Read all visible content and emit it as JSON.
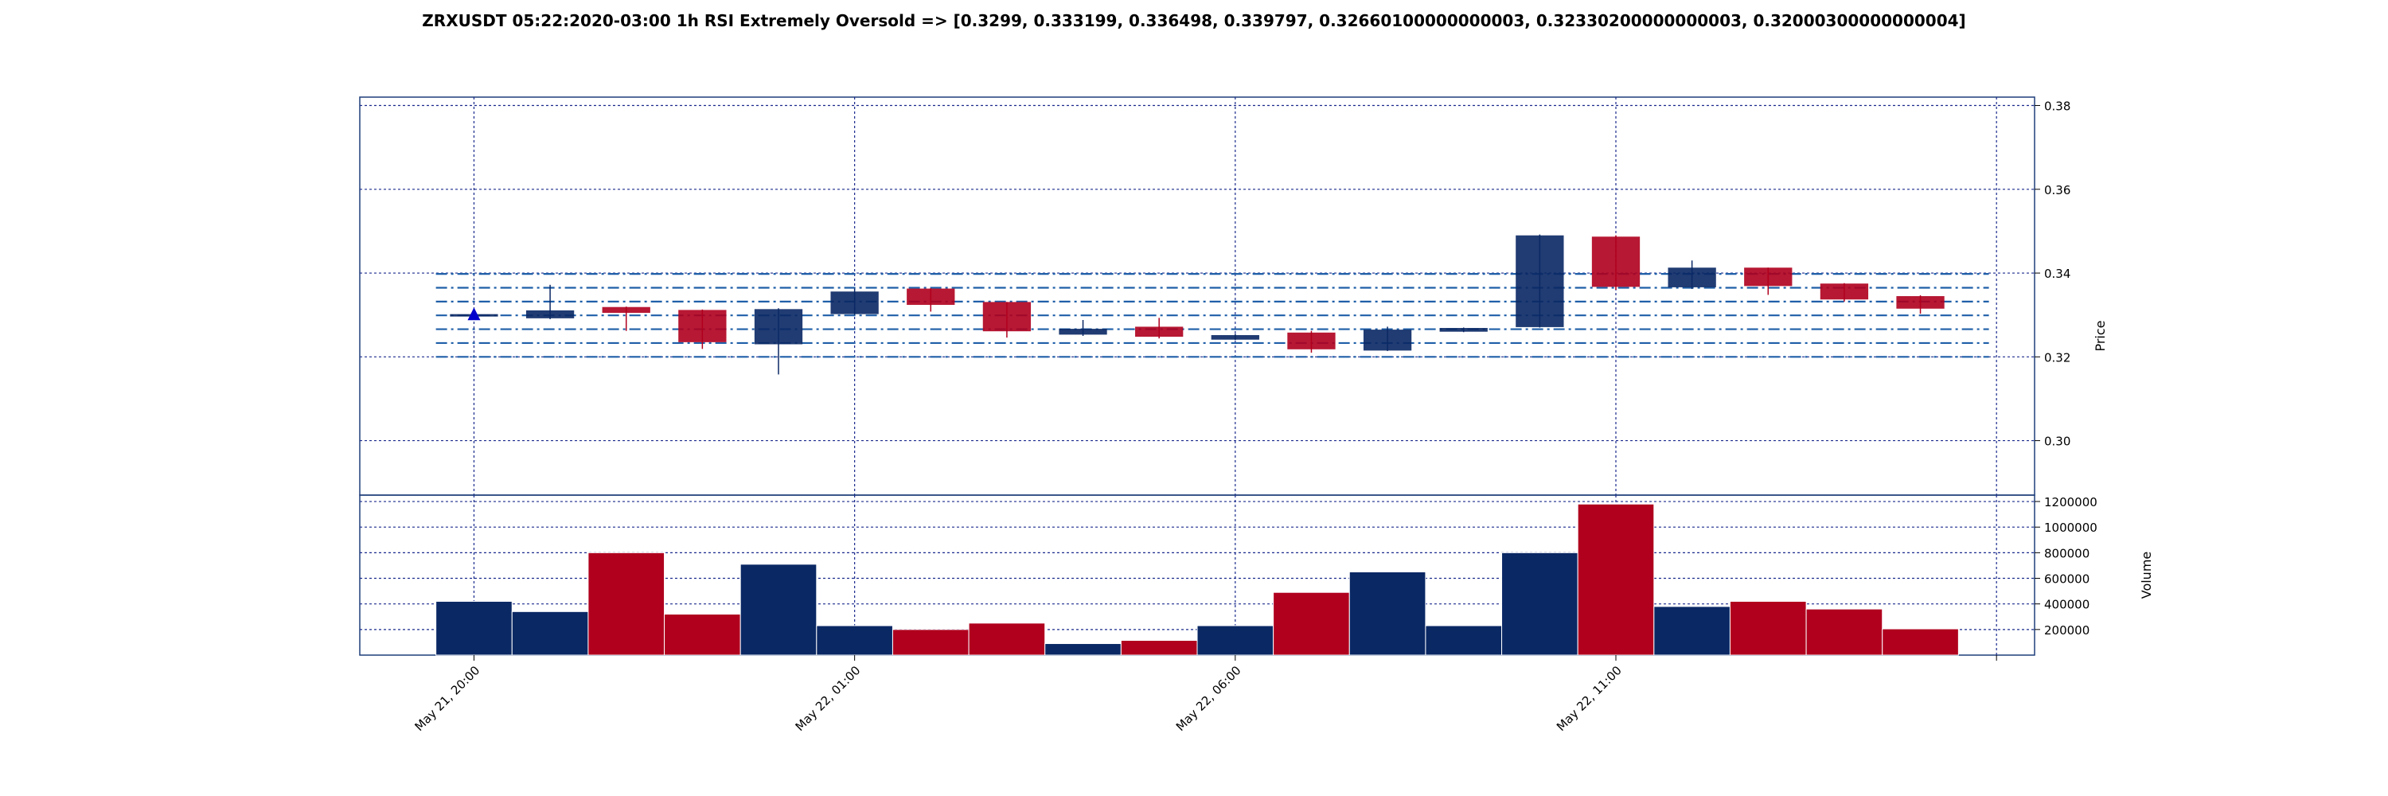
{
  "chart_data": {
    "type": "candlestick",
    "title": "ZRXUSDT 05:22:2020-03:00 1h RSI Extremely Oversold => [0.3299, 0.333199, 0.336498, 0.339797, 0.32660100000000003, 0.32330200000000003, 0.32000300000000004]",
    "price_panel": {
      "ylabel": "Price",
      "ylim": [
        0.287,
        0.382
      ],
      "yticks": [
        "0.30",
        "0.32",
        "0.34",
        "0.36",
        "0.38"
      ],
      "ytick_values": [
        0.3,
        0.32,
        0.34,
        0.36,
        0.38
      ],
      "grid": true,
      "levels": [
        0.3299,
        0.333199,
        0.336498,
        0.339797,
        0.32660100000000003,
        0.32330200000000003,
        0.32000300000000004
      ],
      "marker": {
        "index": 0,
        "value": 0.3299,
        "shape": "triangle-up",
        "color": "#0000cc"
      }
    },
    "volume_panel": {
      "ylabel": "Volume",
      "ylim": [
        0,
        1250000
      ],
      "yticks": [
        "200000",
        "400000",
        "600000",
        "800000",
        "1000000",
        "1200000"
      ],
      "ytick_values": [
        200000,
        400000,
        600000,
        800000,
        1000000,
        1200000
      ],
      "grid": true
    },
    "xticks": [
      {
        "index": 0,
        "label": "May 21, 20:00"
      },
      {
        "index": 5,
        "label": "May 22, 01:00"
      },
      {
        "index": 10,
        "label": "May 22, 06:00"
      },
      {
        "index": 15,
        "label": "May 22, 11:00"
      },
      {
        "index": 20,
        "label": ""
      }
    ],
    "candles": [
      {
        "o": 0.3298,
        "h": 0.3303,
        "l": 0.3294,
        "c": 0.3301,
        "v": 420000
      },
      {
        "o": 0.3293,
        "h": 0.3372,
        "l": 0.329,
        "c": 0.331,
        "v": 340000
      },
      {
        "o": 0.3318,
        "h": 0.332,
        "l": 0.3262,
        "c": 0.3306,
        "v": 800000
      },
      {
        "o": 0.3311,
        "h": 0.3313,
        "l": 0.3219,
        "c": 0.3236,
        "v": 320000
      },
      {
        "o": 0.3231,
        "h": 0.3316,
        "l": 0.3158,
        "c": 0.3313,
        "v": 710000
      },
      {
        "o": 0.3303,
        "h": 0.3363,
        "l": 0.33,
        "c": 0.3355,
        "v": 230000
      },
      {
        "o": 0.3362,
        "h": 0.3364,
        "l": 0.3308,
        "c": 0.3325,
        "v": 200000
      },
      {
        "o": 0.333,
        "h": 0.3331,
        "l": 0.3246,
        "c": 0.3262,
        "v": 250000
      },
      {
        "o": 0.3254,
        "h": 0.3288,
        "l": 0.325,
        "c": 0.3266,
        "v": 90000
      },
      {
        "o": 0.3271,
        "h": 0.3293,
        "l": 0.3244,
        "c": 0.3249,
        "v": 115000
      },
      {
        "o": 0.3242,
        "h": 0.3255,
        "l": 0.324,
        "c": 0.3251,
        "v": 230000
      },
      {
        "o": 0.3257,
        "h": 0.3262,
        "l": 0.321,
        "c": 0.3219,
        "v": 490000
      },
      {
        "o": 0.3216,
        "h": 0.3272,
        "l": 0.3214,
        "c": 0.3264,
        "v": 650000
      },
      {
        "o": 0.3261,
        "h": 0.327,
        "l": 0.3259,
        "c": 0.3268,
        "v": 230000
      },
      {
        "o": 0.3272,
        "h": 0.3492,
        "l": 0.327,
        "c": 0.3489,
        "v": 800000
      },
      {
        "o": 0.3486,
        "h": 0.349,
        "l": 0.336,
        "c": 0.3368,
        "v": 1180000
      },
      {
        "o": 0.3367,
        "h": 0.343,
        "l": 0.3362,
        "c": 0.3412,
        "v": 380000
      },
      {
        "o": 0.3412,
        "h": 0.3413,
        "l": 0.3348,
        "c": 0.337,
        "v": 420000
      },
      {
        "o": 0.3374,
        "h": 0.3376,
        "l": 0.3332,
        "c": 0.3338,
        "v": 360000
      },
      {
        "o": 0.3344,
        "h": 0.3347,
        "l": 0.3303,
        "c": 0.3316,
        "v": 205000
      }
    ]
  },
  "colors": {
    "up": "#0a2864",
    "down": "#b0001e",
    "grid": "#1a2a8c",
    "level": "#1f5fa8",
    "axis": "#1f3f7a",
    "marker": "#0000cc"
  }
}
